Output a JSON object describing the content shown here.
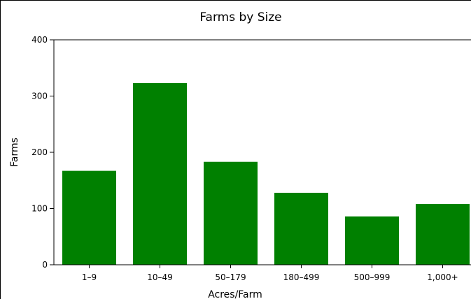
{
  "chart_data": {
    "type": "bar",
    "title": "Farms by Size",
    "xlabel": "Acres/Farm",
    "ylabel": "Farms",
    "categories": [
      "1–9",
      "10–49",
      "50–179",
      "180–499",
      "500–999",
      "1,000+"
    ],
    "values": [
      167,
      323,
      183,
      128,
      86,
      108
    ],
    "ylim": [
      0,
      400
    ],
    "yticks": [
      0,
      100,
      200,
      300,
      400
    ],
    "bar_color": "#008000",
    "grid": false,
    "legend": "none"
  }
}
